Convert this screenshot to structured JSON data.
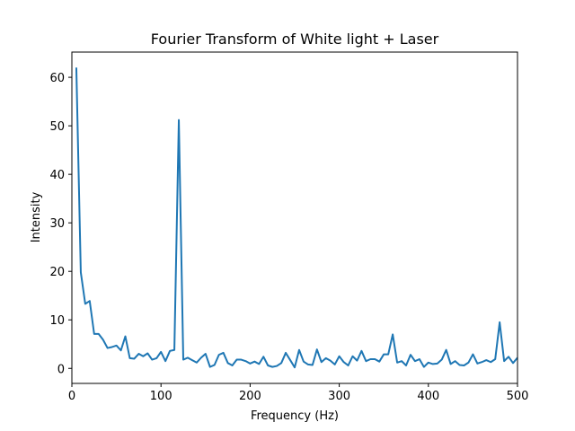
{
  "chart_data": {
    "type": "line",
    "title": "Fourier Transform of White light + Laser",
    "xlabel": "Frequency (Hz)",
    "ylabel": "Intensity",
    "xlim": [
      0,
      500
    ],
    "ylim": [
      -3.1,
      65.2
    ],
    "xticks": [
      0,
      100,
      200,
      300,
      400,
      500
    ],
    "yticks": [
      0,
      10,
      20,
      30,
      40,
      50,
      60
    ],
    "grid": false,
    "color": "#1f77b4",
    "series": [
      {
        "x": [
          5,
          10,
          15,
          20,
          25,
          30,
          35,
          40,
          45,
          50,
          55,
          60,
          65,
          70,
          75,
          80,
          85,
          90,
          95,
          100,
          105,
          110,
          115,
          120,
          125,
          130,
          135,
          140,
          145,
          150,
          155,
          160,
          165,
          170,
          175,
          180,
          185,
          190,
          195,
          200,
          205,
          210,
          215,
          220,
          225,
          230,
          235,
          240,
          245,
          250,
          255,
          260,
          265,
          270,
          275,
          280,
          285,
          290,
          295,
          300,
          305,
          310,
          315,
          320,
          325,
          330,
          335,
          340,
          345,
          350,
          355,
          360,
          365,
          370,
          375,
          380,
          385,
          390,
          395,
          400,
          405,
          410,
          415,
          420,
          425,
          430,
          435,
          440,
          445,
          450,
          455,
          460,
          465,
          470,
          475,
          480,
          485,
          490,
          495,
          500
        ],
        "y": [
          62.0,
          19.8,
          13.3,
          13.9,
          7.1,
          7.1,
          5.9,
          4.2,
          4.4,
          4.7,
          3.7,
          6.6,
          2.1,
          2.0,
          3.0,
          2.5,
          3.1,
          1.8,
          2.1,
          3.4,
          1.5,
          3.6,
          3.8,
          51.2,
          1.8,
          2.2,
          1.7,
          1.2,
          2.2,
          3.0,
          0.3,
          0.7,
          2.8,
          3.2,
          1.1,
          0.6,
          1.8,
          1.8,
          1.5,
          1.0,
          1.4,
          0.9,
          2.4,
          0.6,
          0.3,
          0.5,
          1.1,
          3.2,
          1.7,
          0.2,
          3.8,
          1.4,
          0.8,
          0.7,
          3.9,
          1.3,
          2.1,
          1.6,
          0.8,
          2.5,
          1.3,
          0.6,
          2.5,
          1.6,
          3.6,
          1.5,
          1.9,
          1.9,
          1.4,
          2.9,
          2.9,
          7.0,
          1.2,
          1.5,
          0.6,
          2.8,
          1.5,
          1.9,
          0.3,
          1.2,
          0.9,
          1.0,
          1.8,
          3.8,
          0.9,
          1.5,
          0.7,
          0.6,
          1.2,
          2.9,
          1.0,
          1.3,
          1.7,
          1.3,
          1.9,
          9.5,
          1.5,
          2.4,
          1.1,
          2.2
        ]
      }
    ]
  }
}
